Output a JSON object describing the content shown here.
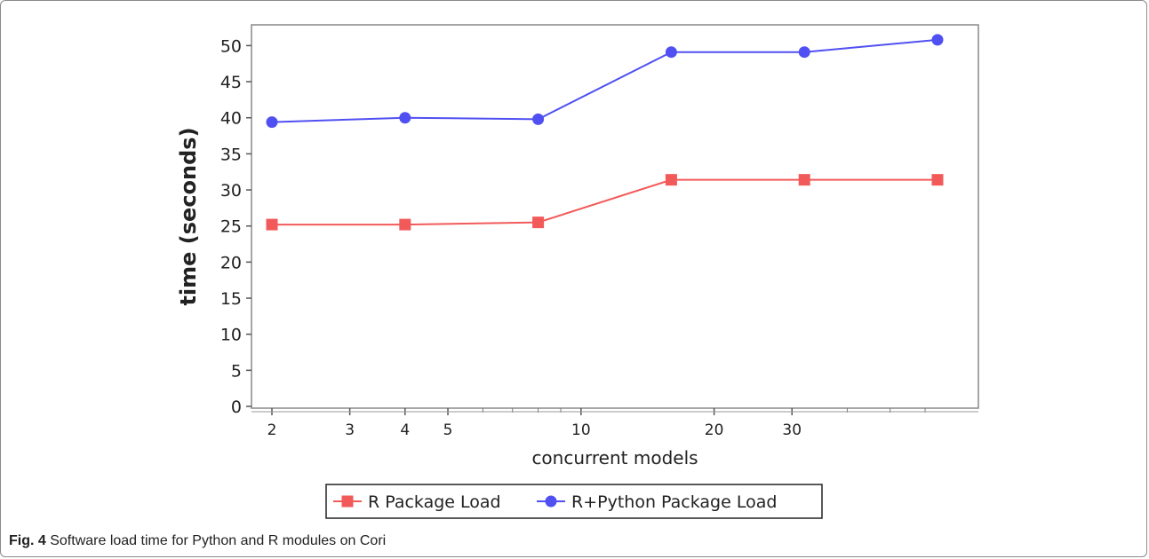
{
  "caption": {
    "label": "Fig. 4",
    "text": "Software load time for Python and R modules on Cori"
  },
  "chart_data": {
    "type": "line",
    "xlabel": "concurrent models",
    "ylabel": "time (seconds)",
    "x_scale": "log",
    "xlim": [
      1.85,
      64
    ],
    "ylim": [
      0,
      53
    ],
    "x_ticks": [
      2,
      3,
      4,
      5,
      10,
      20,
      30
    ],
    "y_ticks": [
      0,
      5,
      10,
      15,
      20,
      25,
      30,
      35,
      40,
      45,
      50
    ],
    "grid": false,
    "legend_position": "bottom-center",
    "series": [
      {
        "name": "R Package Load",
        "color": "#f25a5a",
        "marker": "square",
        "x": [
          2,
          4,
          8,
          16,
          32,
          64
        ],
        "y": [
          25.2,
          25.2,
          25.5,
          31.4,
          31.4,
          31.4
        ]
      },
      {
        "name": "R+Python Package Load",
        "color": "#5050f2",
        "marker": "circle",
        "x": [
          2,
          4,
          8,
          16,
          32,
          64
        ],
        "y": [
          39.4,
          40.0,
          39.8,
          49.1,
          49.1,
          50.8
        ]
      }
    ]
  }
}
